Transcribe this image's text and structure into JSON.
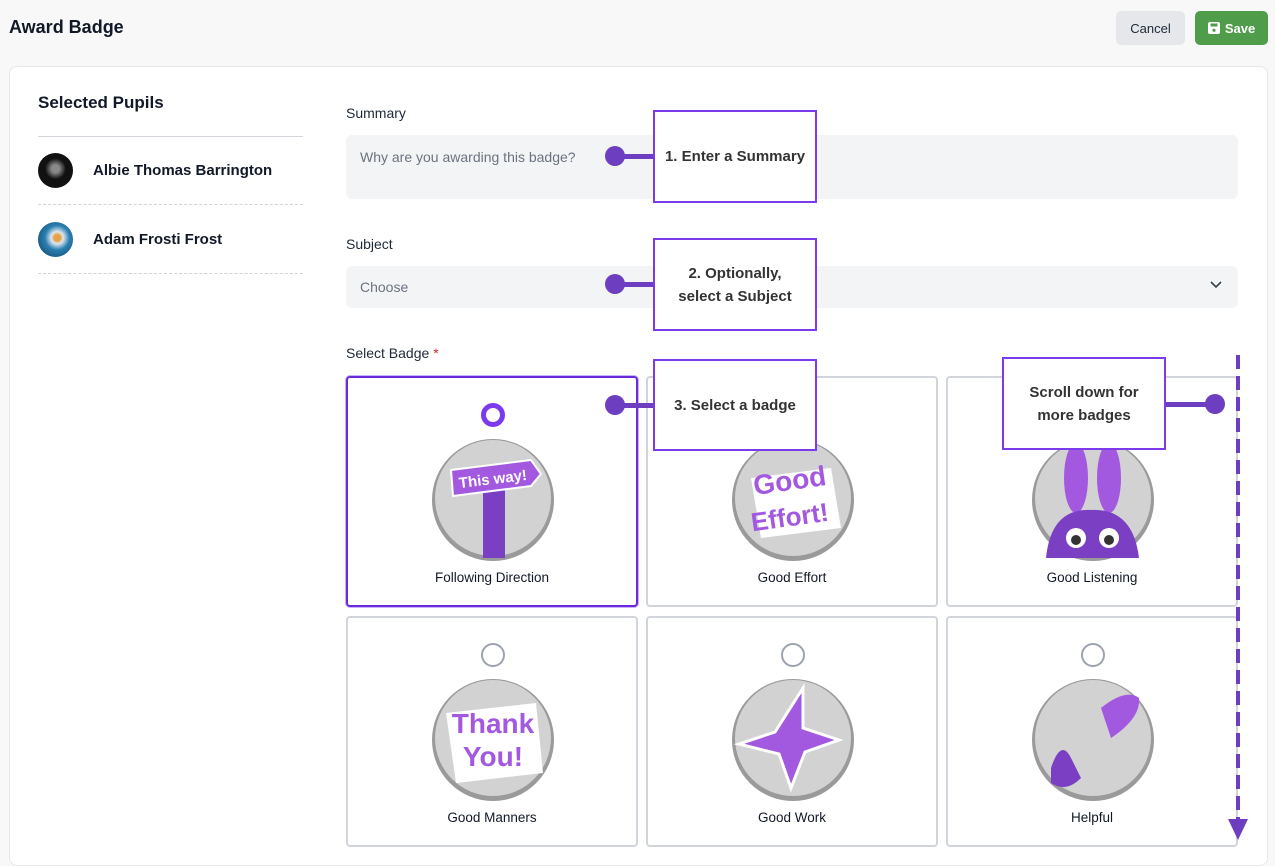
{
  "header": {
    "title": "Award Badge",
    "cancel_label": "Cancel",
    "save_label": "Save"
  },
  "pupils": {
    "heading": "Selected Pupils",
    "items": [
      {
        "name": "Albie Thomas Barrington"
      },
      {
        "name": "Adam Frosti Frost"
      }
    ]
  },
  "form": {
    "summary_label": "Summary",
    "summary_placeholder": "Why are you awarding this badge?",
    "subject_label": "Subject",
    "subject_value": "Choose",
    "badge_label": "Select Badge",
    "required_mark": "*"
  },
  "badges": [
    {
      "name": "Following Direction",
      "selected": true,
      "art": "This way!"
    },
    {
      "name": "Good Effort",
      "selected": false,
      "art": "Good Effort!"
    },
    {
      "name": "Good Listening",
      "selected": false,
      "art": "bunny"
    },
    {
      "name": "Good Manners",
      "selected": false,
      "art": "Thank You!"
    },
    {
      "name": "Good Work",
      "selected": false,
      "art": "star"
    },
    {
      "name": "Helpful",
      "selected": false,
      "art": "hands"
    }
  ],
  "callouts": {
    "c1": "1. Enter a Summary",
    "c2": "2. Optionally, select a Subject",
    "c3": "3. Select a badge",
    "c4": "Scroll down for more badges"
  },
  "colors": {
    "accent": "#7c3aed",
    "save": "#4f9d4a"
  }
}
